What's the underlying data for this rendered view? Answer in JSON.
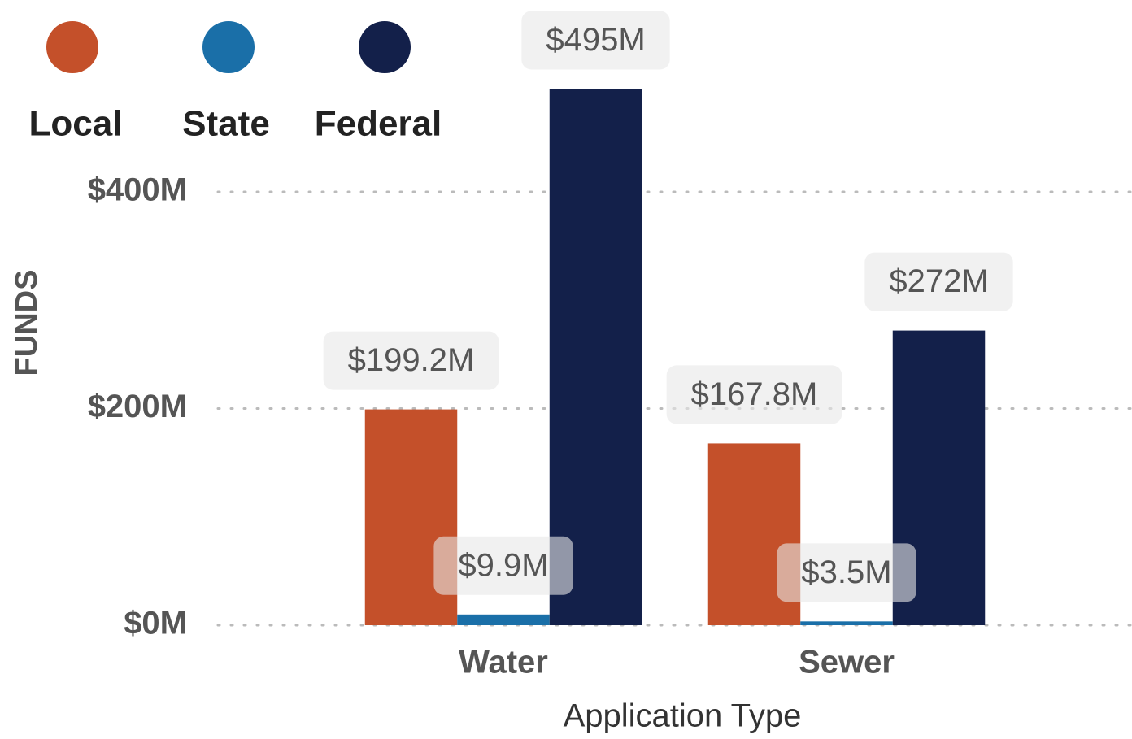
{
  "chart_data": {
    "type": "bar",
    "x_label": "Application Type",
    "y_label": "FUNDS",
    "categories": [
      "Water",
      "Sewer"
    ],
    "series": [
      {
        "name": "Local",
        "color": "#c4502a",
        "values": [
          199.2,
          167.8
        ],
        "value_labels": [
          "$199.2M",
          "$167.8M"
        ]
      },
      {
        "name": "State",
        "color": "#1a6fa8",
        "values": [
          9.9,
          3.5
        ],
        "value_labels": [
          "$9.9M",
          "$3.5M"
        ]
      },
      {
        "name": "Federal",
        "color": "#13204a",
        "values": [
          495,
          272
        ],
        "value_labels": [
          "$495M",
          "$272M"
        ]
      }
    ],
    "ylim": [
      0,
      540
    ],
    "yticks": [
      {
        "value": 0,
        "label": "$0M"
      },
      {
        "value": 200,
        "label": "$200M"
      },
      {
        "value": 400,
        "label": "$400M"
      }
    ],
    "grid": true,
    "legend": "top-left"
  }
}
